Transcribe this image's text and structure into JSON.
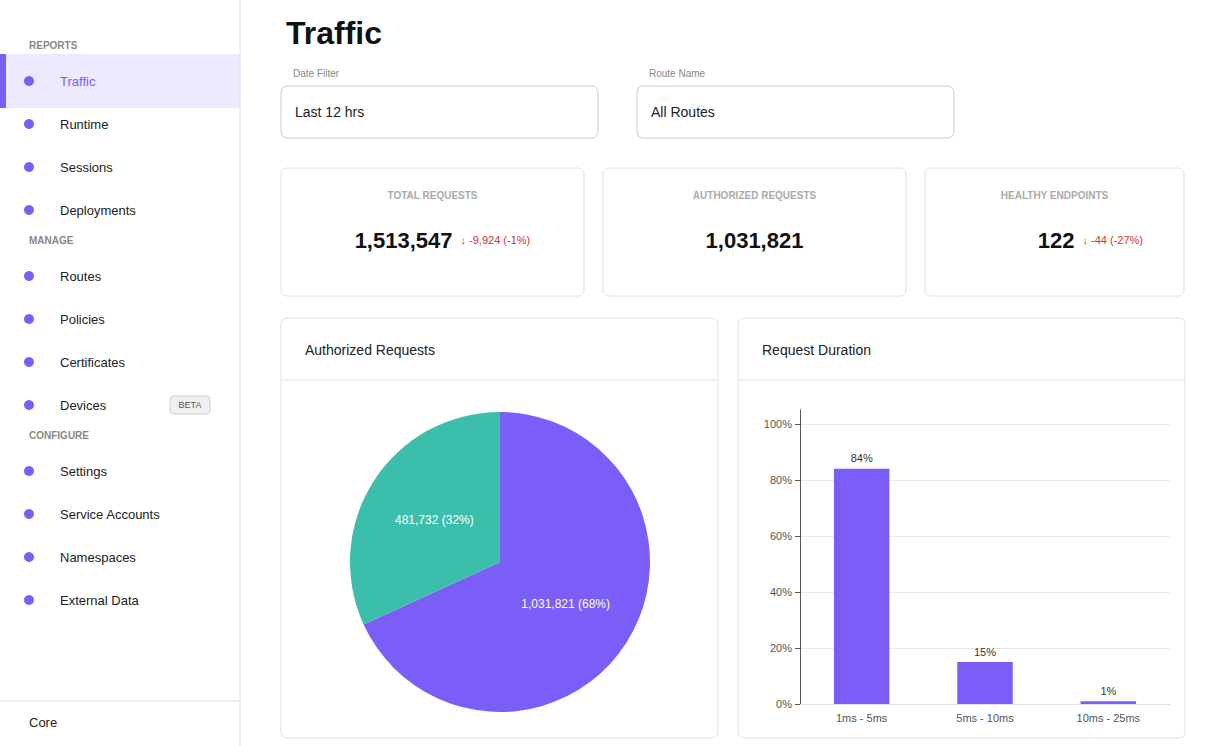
{
  "title": "Traffic",
  "annotations": {
    "sidebar": {
      "color": "#7B5EF8",
      "sections": [
        {
          "label": "REPORTS",
          "items": [
            "Traffic",
            "Runtime",
            "Sessions",
            "Deployments"
          ],
          "active": "Traffic"
        },
        {
          "label": "MANAGE",
          "items": [
            "Routes",
            "Policies",
            "Certificates",
            "Devices"
          ],
          "badge": {
            "item": "Devices",
            "text": "BETA"
          }
        },
        {
          "label": "CONFIGURE",
          "items": [
            "Settings",
            "Service Accounts",
            "Namespaces",
            "External Data"
          ]
        }
      ],
      "footer": "Core"
    },
    "filters": [
      {
        "label": "Date Filter",
        "value": "Last 12 hrs"
      },
      {
        "label": "Route Name",
        "value": "All Routes"
      }
    ],
    "cards": [
      {
        "label": "TOTAL REQUESTS",
        "value": "1,513,547",
        "delta": "↓ -9,924 (-1%)",
        "delta_color": "#d32f2f"
      },
      {
        "label": "AUTHORIZED REQUESTS",
        "value": "1,031,821"
      },
      {
        "label": "HEALTHY ENDPOINTS",
        "value": "122",
        "delta": "↓ -44 (-27%)",
        "delta_color": "#d32f2f"
      }
    ]
  },
  "chart_data": [
    {
      "type": "pie",
      "title": "Authorized Requests",
      "values": [
        1031821,
        481732
      ],
      "value_labels": [
        "1,031,821 (68%)",
        "481,732 (32%)"
      ],
      "colors": [
        "#7B5EF8",
        "#3CBFAA"
      ],
      "data_labels": true
    },
    {
      "type": "bar",
      "title": "Request Duration",
      "categories": [
        "1ms - 5ms",
        "5ms - 10ms",
        "10ms - 25ms"
      ],
      "values": [
        84,
        15,
        1
      ],
      "value_labels": [
        "84%",
        "15%",
        "1%"
      ],
      "color": "#7B5EF8",
      "ylim": [
        0,
        105
      ],
      "yticks": [
        {
          "value": 0,
          "label": "0%"
        },
        {
          "value": 20,
          "label": "20%"
        },
        {
          "value": 40,
          "label": "40%"
        },
        {
          "value": 60,
          "label": "60%"
        },
        {
          "value": 80,
          "label": "80%"
        },
        {
          "value": 100,
          "label": "100%"
        }
      ],
      "data_labels": true,
      "grid": true
    }
  ]
}
